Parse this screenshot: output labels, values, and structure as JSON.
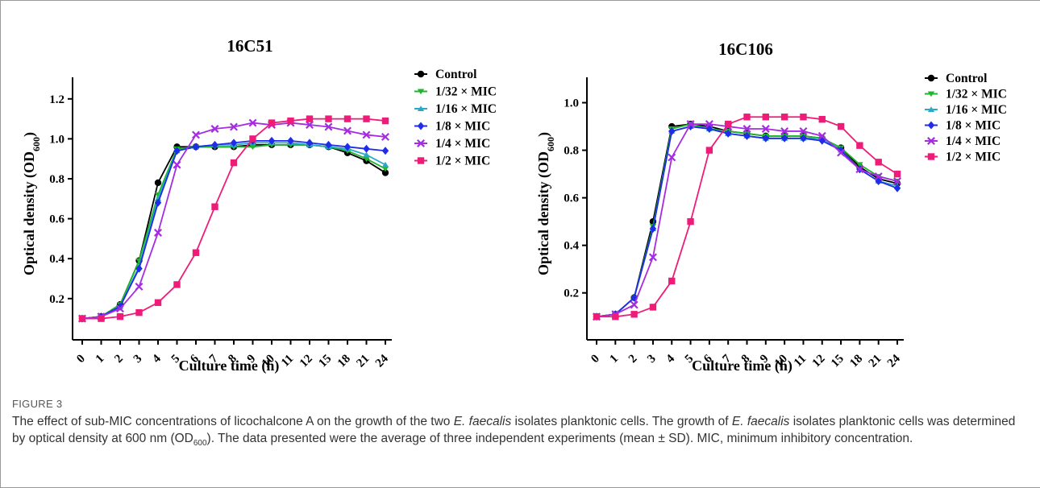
{
  "figure": {
    "label": "FIGURE 3",
    "caption_parts": {
      "p1": "The effect of sub-MIC concentrations of licochalcone A on the growth of the two ",
      "species": "E. faecalis",
      "p2": " isolates planktonic cells. The growth of ",
      "p3": " isolates planktonic cells was determined by optical density at 600 nm (OD",
      "sub": "600",
      "p4": "). The data presented were the average of three independent experiments (mean ± SD). MIC, minimum inhibitory concentration."
    }
  },
  "colors": {
    "Control": "#000000",
    "1/32 × MIC": "#1fb52d",
    "1/16 × MIC": "#2aa8c4",
    "1/8 × MIC": "#1f2ce8",
    "1/4 × MIC": "#a52ce0",
    "1/2 × MIC": "#ee1c78"
  },
  "chart_data": [
    {
      "type": "line",
      "title": "16C51",
      "xlabel": "Culture time (h)",
      "ylabel_main": "Optical density (OD",
      "ylabel_sub": "600",
      "ylabel_end": ")",
      "categories": [
        "0",
        "1",
        "2",
        "3",
        "4",
        "5",
        "6",
        "7",
        "8",
        "9",
        "10",
        "11",
        "12",
        "15",
        "18",
        "21",
        "24"
      ],
      "ylim": [
        0.05,
        1.3
      ],
      "yticks": [
        0.2,
        0.4,
        0.6,
        0.8,
        1.0,
        1.2
      ],
      "ytick_labels": [
        "0.2",
        "0.4",
        "0.6",
        "0.8",
        "1.0",
        "1.2"
      ],
      "series": [
        {
          "name": "Control",
          "marker": "circle",
          "values": [
            0.1,
            0.11,
            0.17,
            0.39,
            0.78,
            0.96,
            0.96,
            0.96,
            0.96,
            0.97,
            0.97,
            0.97,
            0.97,
            0.96,
            0.93,
            0.89,
            0.83
          ]
        },
        {
          "name": "1/32 × MIC",
          "marker": "tri-down",
          "values": [
            0.1,
            0.11,
            0.17,
            0.39,
            0.72,
            0.95,
            0.96,
            0.96,
            0.96,
            0.96,
            0.97,
            0.97,
            0.97,
            0.96,
            0.94,
            0.9,
            0.85
          ]
        },
        {
          "name": "1/16 × MIC",
          "marker": "tri-up",
          "values": [
            0.1,
            0.11,
            0.16,
            0.36,
            0.7,
            0.94,
            0.96,
            0.97,
            0.97,
            0.98,
            0.98,
            0.98,
            0.97,
            0.96,
            0.95,
            0.92,
            0.87
          ]
        },
        {
          "name": "1/8 × MIC",
          "marker": "diamond",
          "values": [
            0.1,
            0.11,
            0.16,
            0.35,
            0.68,
            0.94,
            0.96,
            0.97,
            0.98,
            0.99,
            0.99,
            0.99,
            0.98,
            0.97,
            0.96,
            0.95,
            0.94
          ]
        },
        {
          "name": "1/4 × MIC",
          "marker": "x",
          "values": [
            0.1,
            0.11,
            0.15,
            0.26,
            0.53,
            0.87,
            1.02,
            1.05,
            1.06,
            1.08,
            1.07,
            1.08,
            1.07,
            1.06,
            1.04,
            1.02,
            1.01
          ]
        },
        {
          "name": "1/2 × MIC",
          "marker": "square",
          "values": [
            0.1,
            0.1,
            0.11,
            0.13,
            0.18,
            0.27,
            0.43,
            0.66,
            0.88,
            1.0,
            1.08,
            1.09,
            1.1,
            1.1,
            1.1,
            1.1,
            1.09
          ]
        }
      ]
    },
    {
      "type": "line",
      "title": "16C106",
      "xlabel": "Culture time (h)",
      "ylabel_main": "Optical density (OD",
      "ylabel_sub": "600",
      "ylabel_end": ")",
      "categories": [
        "0",
        "1",
        "2",
        "3",
        "4",
        "5",
        "6",
        "7",
        "8",
        "9",
        "10",
        "11",
        "12",
        "15",
        "18",
        "21",
        "24"
      ],
      "ylim": [
        0.05,
        1.1
      ],
      "yticks": [
        0.2,
        0.4,
        0.6,
        0.8,
        1.0
      ],
      "ytick_labels": [
        "0.2",
        "0.4",
        "0.6",
        "0.8",
        "1.0"
      ],
      "series": [
        {
          "name": "Control",
          "marker": "circle",
          "values": [
            0.1,
            0.11,
            0.18,
            0.5,
            0.9,
            0.91,
            0.9,
            0.88,
            0.87,
            0.86,
            0.86,
            0.86,
            0.85,
            0.81,
            0.73,
            0.68,
            0.66
          ]
        },
        {
          "name": "1/32 × MIC",
          "marker": "tri-down",
          "values": [
            0.1,
            0.11,
            0.18,
            0.48,
            0.89,
            0.91,
            0.89,
            0.88,
            0.87,
            0.86,
            0.86,
            0.86,
            0.85,
            0.81,
            0.74,
            0.69,
            0.67
          ]
        },
        {
          "name": "1/16 × MIC",
          "marker": "tri-up",
          "values": [
            0.1,
            0.11,
            0.18,
            0.47,
            0.88,
            0.9,
            0.89,
            0.87,
            0.86,
            0.85,
            0.85,
            0.85,
            0.85,
            0.8,
            0.72,
            0.67,
            0.65
          ]
        },
        {
          "name": "1/8 × MIC",
          "marker": "diamond",
          "values": [
            0.1,
            0.11,
            0.18,
            0.47,
            0.88,
            0.9,
            0.89,
            0.87,
            0.86,
            0.85,
            0.85,
            0.85,
            0.84,
            0.8,
            0.72,
            0.67,
            0.64
          ]
        },
        {
          "name": "1/4 × MIC",
          "marker": "x",
          "values": [
            0.1,
            0.11,
            0.15,
            0.35,
            0.77,
            0.91,
            0.91,
            0.9,
            0.89,
            0.89,
            0.88,
            0.88,
            0.86,
            0.79,
            0.72,
            0.69,
            0.67
          ]
        },
        {
          "name": "1/2 × MIC",
          "marker": "square",
          "values": [
            0.1,
            0.1,
            0.11,
            0.14,
            0.25,
            0.5,
            0.8,
            0.91,
            0.94,
            0.94,
            0.94,
            0.94,
            0.93,
            0.9,
            0.82,
            0.75,
            0.7
          ]
        }
      ]
    }
  ]
}
